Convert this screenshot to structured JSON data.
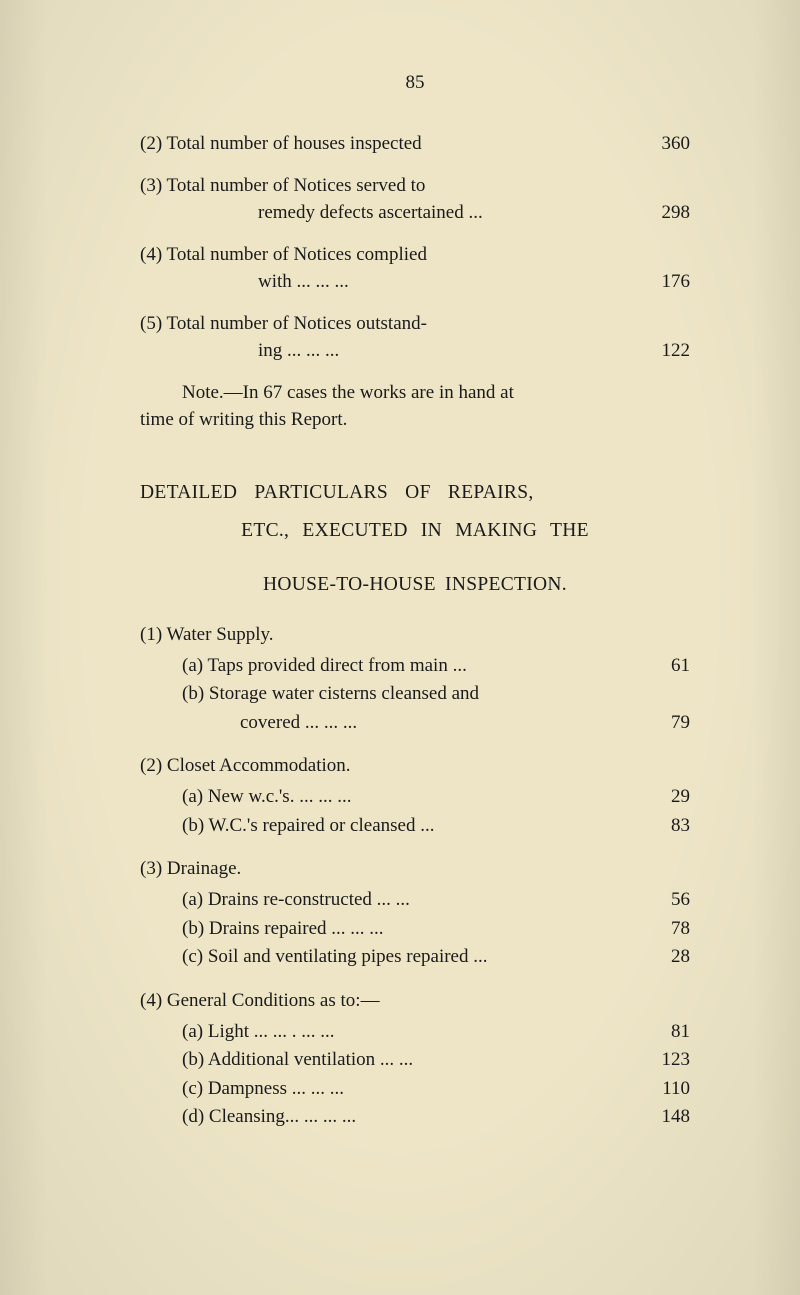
{
  "page_number": "85",
  "upper_list": [
    {
      "label": "(2) Total number of houses inspected",
      "value": "360",
      "cont": null
    },
    {
      "label": "(3) Total number of Notices served to",
      "value": "",
      "cont": {
        "text": "remedy defects ascertained ...",
        "value": "298"
      }
    },
    {
      "label": "(4) Total number of Notices complied",
      "value": "",
      "cont": {
        "text": "with          ...          ...          ...",
        "value": "176"
      }
    },
    {
      "label": "(5) Total number of Notices outstand-",
      "value": "",
      "cont": {
        "text": "ing           ...          ...          ...",
        "value": "122"
      }
    }
  ],
  "note_l1": "Note.—In 67 cases the works are in hand at",
  "note_l2": "time of writing this Report.",
  "heading_l1": "DETAILED   PARTICULARS   OF   REPAIRS,",
  "heading_l2": "ETC.,  EXECUTED  IN  MAKING  THE",
  "heading_l3": "HOUSE-TO-HOUSE  INSPECTION.",
  "sections": [
    {
      "head": "(1) Water Supply.",
      "items": [
        {
          "text": "(a) Taps provided direct from main    ...",
          "value": "61",
          "cont": null
        },
        {
          "text": "(b) Storage water cisterns cleansed and",
          "value": "",
          "cont": {
            "text": "covered          ...          ...          ...",
            "value": "79"
          }
        }
      ]
    },
    {
      "head": "(2) Closet Accommodation.",
      "items": [
        {
          "text": "(a) New w.c.'s.          ...          ...          ...",
          "value": "29",
          "cont": null
        },
        {
          "text": "(b) W.C.'s repaired or cleansed          ...",
          "value": "83",
          "cont": null
        }
      ]
    },
    {
      "head": "(3) Drainage.",
      "items": [
        {
          "text": "(a) Drains re-constructed          ...          ...",
          "value": "56",
          "cont": null
        },
        {
          "text": "(b) Drains repaired     ...          ...          ...",
          "value": "78",
          "cont": null
        },
        {
          "text": "(c) Soil and ventilating pipes repaired ...",
          "value": "28",
          "cont": null
        }
      ]
    },
    {
      "head": "(4) General Conditions as to:—",
      "items": [
        {
          "text": "(a) Light         ...          ...     .    ...          ...",
          "value": "81",
          "cont": null
        },
        {
          "text": "(b) Additional ventilation        ...          ...",
          "value": "123",
          "cont": null
        },
        {
          "text": "(c) Dampness               ...          ...          ...",
          "value": "110",
          "cont": null
        },
        {
          "text": "(d) Cleansing...           ...          ...          ...",
          "value": "148",
          "cont": null
        }
      ]
    }
  ]
}
